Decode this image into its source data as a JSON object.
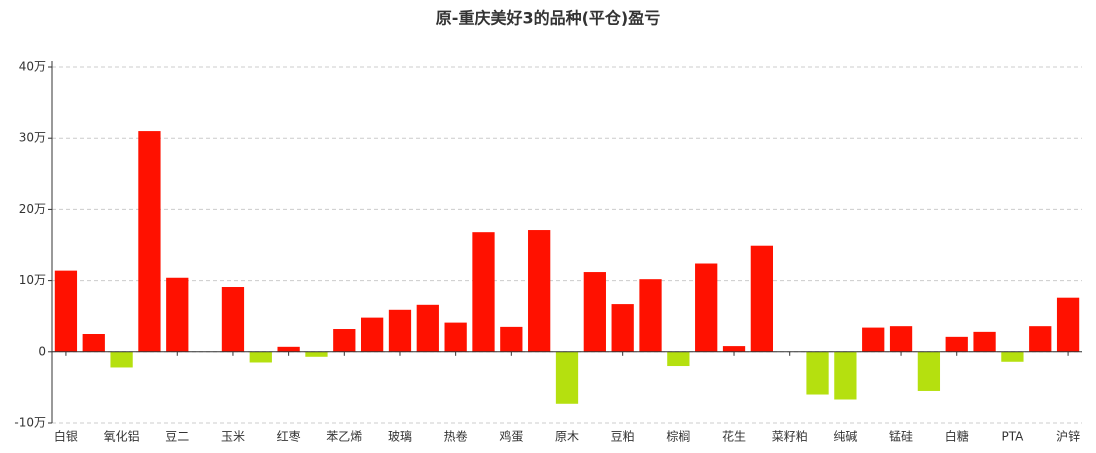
{
  "chart_data": {
    "type": "bar",
    "title": "原-重庆美好3的品种(平仓)盈亏",
    "categories": [
      "白银",
      null,
      "氧化铝",
      null,
      "豆二",
      null,
      "玉米",
      null,
      "红枣",
      null,
      "苯乙烯",
      null,
      "玻璃",
      null,
      "热卷",
      null,
      "鸡蛋",
      null,
      "原木",
      null,
      "豆粕",
      null,
      "棕榈",
      null,
      "花生",
      null,
      "菜籽粕",
      null,
      "纯碱",
      null,
      "锰硅",
      null,
      "白糖",
      null,
      "PTA",
      null,
      "沪锌"
    ],
    "values": [
      11.4,
      2.5,
      -2.2,
      31.0,
      10.4,
      0,
      9.1,
      -1.5,
      0.7,
      -0.7,
      3.2,
      4.8,
      5.9,
      6.6,
      4.1,
      16.8,
      3.5,
      17.1,
      -7.3,
      11.2,
      6.7,
      10.2,
      -2.0,
      12.4,
      0.8,
      14.9,
      0,
      -6.0,
      -6.7,
      3.4,
      3.6,
      -5.5,
      2.1,
      2.8,
      -1.4,
      3.6,
      7.6
    ],
    "color": "#ff1100",
    "negative_color": "#b5e00f",
    "ylim": [
      -10,
      40
    ],
    "yticks": [
      {
        "value": -10,
        "label": "-10万"
      },
      0,
      {
        "value": 10,
        "label": "10万"
      },
      {
        "value": 20,
        "label": "20万"
      },
      {
        "value": 30,
        "label": "30万"
      },
      {
        "value": 40,
        "label": "40万"
      }
    ],
    "grid": true
  }
}
